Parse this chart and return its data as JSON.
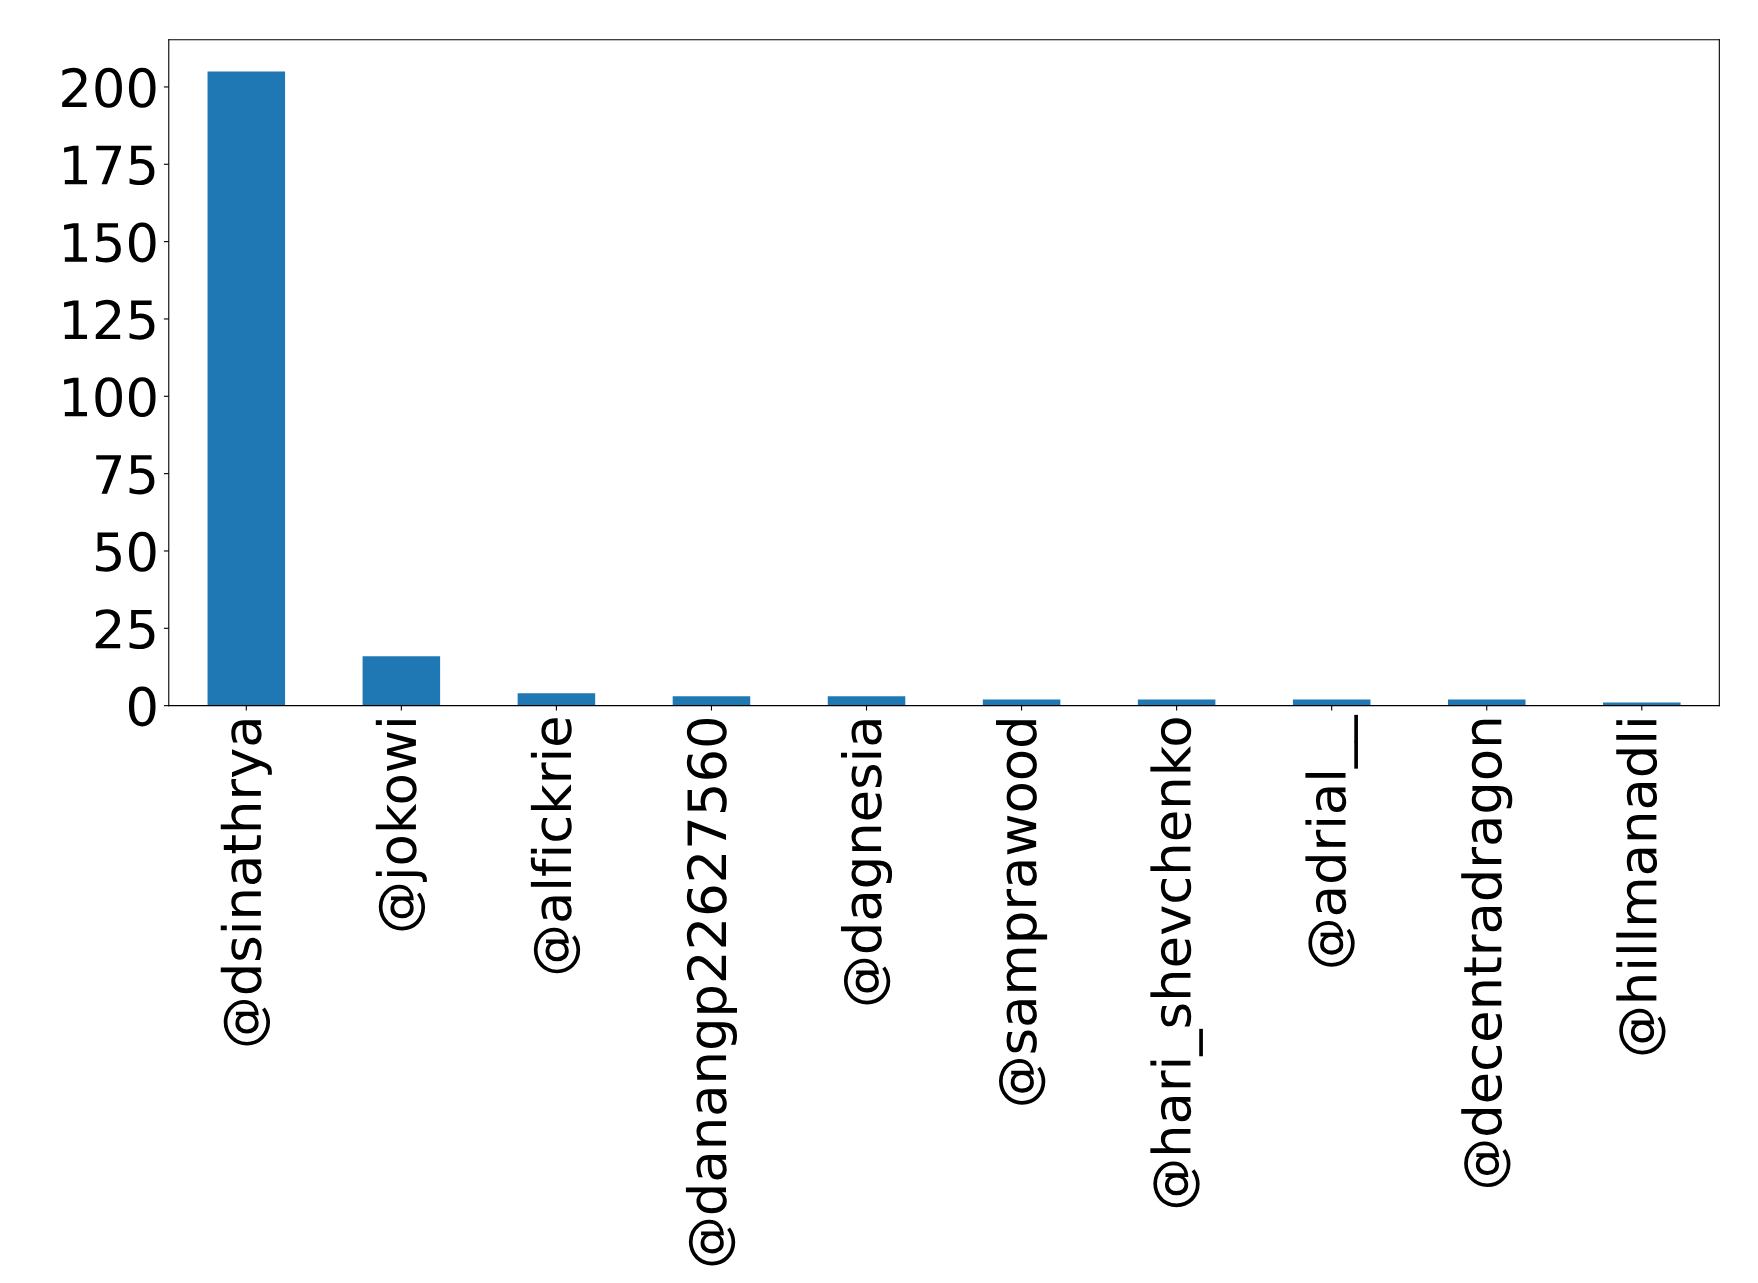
{
  "chart_data": {
    "type": "bar",
    "categories": [
      "@dsinathrya",
      "@jokowi",
      "@alfickrie",
      "@danangp22627560",
      "@dagnesia",
      "@samprawood",
      "@hari_shevchenko",
      "@adrial__",
      "@decentradragon",
      "@hillmanadli"
    ],
    "values": [
      205,
      16,
      4,
      3,
      3,
      2,
      2,
      2,
      2,
      1
    ],
    "color": "#1f77b4",
    "ylim": [
      0,
      215.25
    ],
    "yticks": [
      0,
      25,
      50,
      75,
      100,
      125,
      150,
      175,
      200
    ],
    "grid": false,
    "legend": false
  }
}
